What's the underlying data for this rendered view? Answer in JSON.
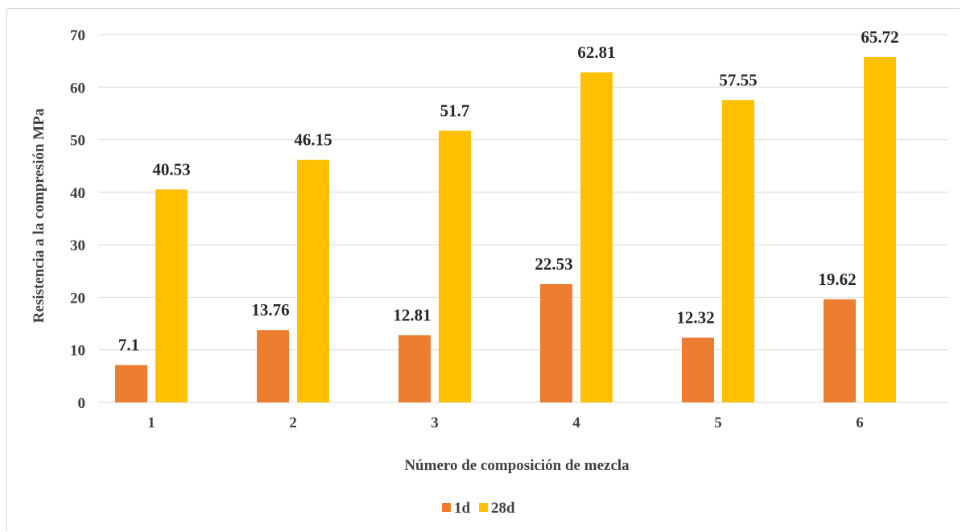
{
  "chart_data": {
    "type": "bar",
    "title": "",
    "xlabel": "Número de composición de mezcla",
    "ylabel": "Resistencia a la compresión MPa",
    "categories": [
      "1",
      "2",
      "3",
      "4",
      "5",
      "6"
    ],
    "series": [
      {
        "name": "1d",
        "values": [
          7.1,
          13.76,
          12.81,
          22.53,
          12.32,
          19.62
        ],
        "labels": [
          "7.1",
          "13.76",
          "12.81",
          "22.53",
          "12.32",
          "19.62"
        ],
        "color": "#ED7D31"
      },
      {
        "name": "28d",
        "values": [
          40.53,
          46.15,
          51.7,
          62.81,
          57.55,
          65.72
        ],
        "labels": [
          "40.53",
          "46.15",
          "51.7",
          "62.81",
          "57.55",
          "65.72"
        ],
        "color": "#FFC000"
      }
    ],
    "ylim": [
      0,
      70
    ],
    "yticks": [
      0,
      10,
      20,
      30,
      40,
      50,
      60,
      70
    ],
    "grid": true,
    "legend_position": "bottom"
  }
}
